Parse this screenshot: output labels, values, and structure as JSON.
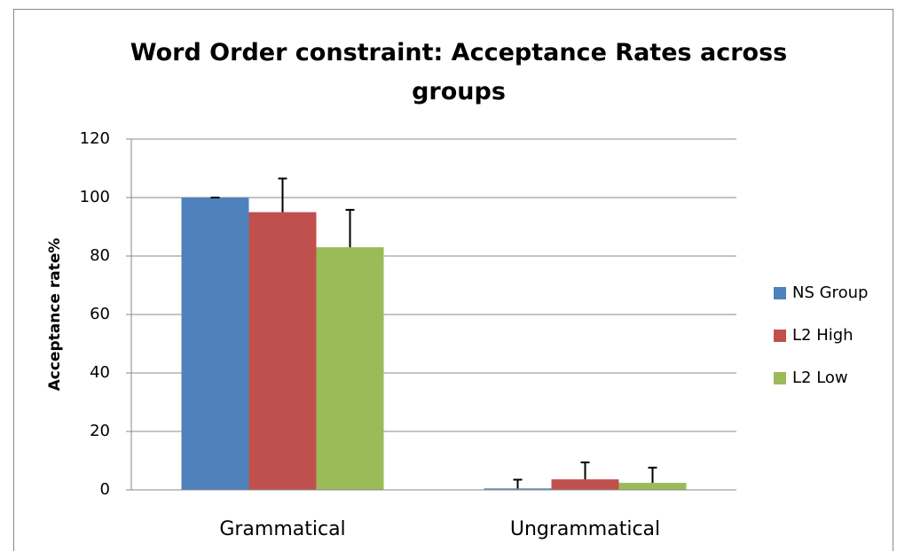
{
  "chart_data": {
    "type": "bar",
    "title": "Word Order constraint: Acceptance Rates across groups",
    "y_label": "Acceptance rate%",
    "categories": [
      "Grammatical",
      "Ungrammatical"
    ],
    "series": [
      {
        "name": "NS Group",
        "color": "#4f81bd",
        "values": [
          100,
          0.5
        ],
        "errors": [
          0,
          3
        ]
      },
      {
        "name": "L2 High",
        "color": "#c0504d",
        "values": [
          95,
          3.6
        ],
        "errors": [
          11.5,
          5.8
        ]
      },
      {
        "name": "L2 Low",
        "color": "#9bbb59",
        "values": [
          83,
          2.4
        ],
        "errors": [
          12.8,
          5.2
        ]
      }
    ],
    "ylim": [
      0,
      120
    ],
    "yticks": [
      0,
      20,
      40,
      60,
      80,
      100,
      120
    ],
    "grid": true,
    "legend": "right"
  }
}
